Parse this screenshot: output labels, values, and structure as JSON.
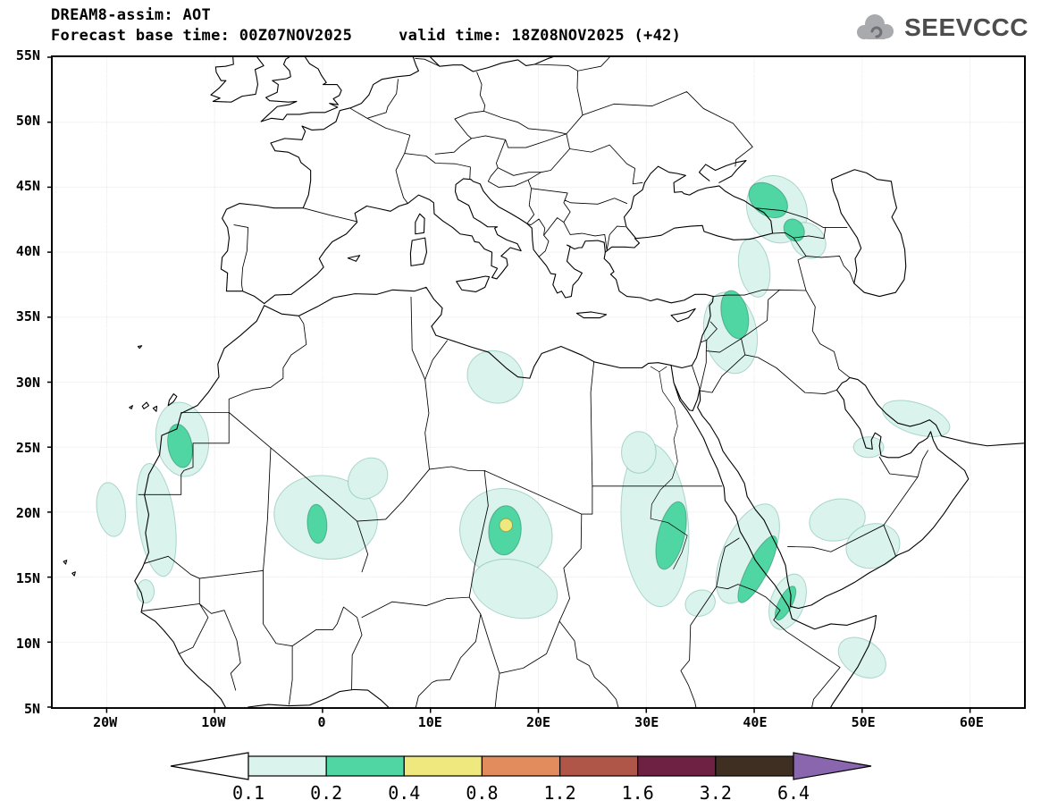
{
  "header": {
    "title": "DREAM8-assim: AOT",
    "base_time": "Forecast base time: 00Z07NOV2025",
    "valid_time": "valid time: 18Z08NOV2025 (+42)",
    "logo_text": "SEEVCCC"
  },
  "axes": {
    "lat": {
      "min": 5,
      "max": 55,
      "ticks": [
        {
          "v": 5,
          "label": "5N"
        },
        {
          "v": 10,
          "label": "10N"
        },
        {
          "v": 15,
          "label": "15N"
        },
        {
          "v": 20,
          "label": "20N"
        },
        {
          "v": 25,
          "label": "25N"
        },
        {
          "v": 30,
          "label": "30N"
        },
        {
          "v": 35,
          "label": "35N"
        },
        {
          "v": 40,
          "label": "40N"
        },
        {
          "v": 45,
          "label": "45N"
        },
        {
          "v": 50,
          "label": "50N"
        },
        {
          "v": 55,
          "label": "55N"
        }
      ]
    },
    "lon": {
      "min": -25,
      "max": 65,
      "ticks": [
        {
          "v": -20,
          "label": "20W"
        },
        {
          "v": -10,
          "label": "10W"
        },
        {
          "v": 0,
          "label": "0"
        },
        {
          "v": 10,
          "label": "10E"
        },
        {
          "v": 20,
          "label": "20E"
        },
        {
          "v": 30,
          "label": "30E"
        },
        {
          "v": 40,
          "label": "40E"
        },
        {
          "v": 50,
          "label": "50E"
        },
        {
          "v": 60,
          "label": "60E"
        }
      ]
    }
  },
  "chart_data": {
    "type": "heatmap",
    "title": "DREAM8-assim: AOT",
    "variable": "AOT",
    "x_range": [
      -25,
      65
    ],
    "y_range": [
      5,
      55
    ],
    "levels": [
      0.1,
      0.2,
      0.4,
      0.8,
      1.2,
      1.6,
      3.2,
      6.4
    ],
    "level_ranges": {
      "1": "0.1-0.2",
      "2": "0.2-0.4",
      "3": "0.4-0.8"
    },
    "colorbar": {
      "labels": [
        "0.1",
        "0.2",
        "0.4",
        "0.8",
        "1.2",
        "1.6",
        "3.2",
        "6.4"
      ],
      "colors": [
        "#daf3ec",
        "#4fd6a3",
        "#efe87e",
        "#e28b5c",
        "#b05648",
        "#6e2142",
        "#3f2e22"
      ],
      "under_color": "#ffffff",
      "over_color": "#8a66ae"
    },
    "regions": [
      {
        "level": 1,
        "lon": -13.0,
        "lat": 25.6,
        "rx": 2.4,
        "ry": 2.9,
        "rot": 18
      },
      {
        "level": 1,
        "lon": -15.4,
        "lat": 19.4,
        "rx": 1.7,
        "ry": 4.4,
        "rot": 10
      },
      {
        "level": 1,
        "lon": -19.6,
        "lat": 20.2,
        "rx": 1.3,
        "ry": 2.1,
        "rot": 12
      },
      {
        "level": 1,
        "lon": -16.4,
        "lat": 13.9,
        "rx": 0.8,
        "ry": 0.9,
        "rot": 0
      },
      {
        "level": 1,
        "lon": 0.3,
        "lat": 19.6,
        "rx": 4.8,
        "ry": 3.2,
        "rot": -6
      },
      {
        "level": 1,
        "lon": 4.2,
        "lat": 22.6,
        "rx": 1.9,
        "ry": 1.5,
        "rot": 25
      },
      {
        "level": 1,
        "lon": 16.0,
        "lat": 30.4,
        "rx": 2.6,
        "ry": 2.0,
        "rot": -10
      },
      {
        "level": 1,
        "lon": 17.0,
        "lat": 18.4,
        "rx": 4.3,
        "ry": 3.4,
        "rot": -8
      },
      {
        "level": 1,
        "lon": 17.8,
        "lat": 14.1,
        "rx": 4.0,
        "ry": 2.2,
        "rot": -10
      },
      {
        "level": 1,
        "lon": 30.8,
        "lat": 19.0,
        "rx": 3.1,
        "ry": 6.3,
        "rot": 6
      },
      {
        "level": 1,
        "lon": 29.3,
        "lat": 24.6,
        "rx": 1.6,
        "ry": 1.6,
        "rot": 0
      },
      {
        "level": 1,
        "lon": 39.4,
        "lat": 16.8,
        "rx": 2.2,
        "ry": 4.3,
        "rot": -32
      },
      {
        "level": 1,
        "lon": 43.1,
        "lat": 13.1,
        "rx": 1.5,
        "ry": 2.3,
        "rot": -30
      },
      {
        "level": 1,
        "lon": 35.0,
        "lat": 13.0,
        "rx": 1.4,
        "ry": 1.0,
        "rot": 10
      },
      {
        "level": 1,
        "lon": 47.7,
        "lat": 19.4,
        "rx": 2.6,
        "ry": 1.6,
        "rot": 8
      },
      {
        "level": 1,
        "lon": 51.0,
        "lat": 17.4,
        "rx": 2.5,
        "ry": 1.7,
        "rot": 8
      },
      {
        "level": 1,
        "lon": 55.0,
        "lat": 27.2,
        "rx": 3.2,
        "ry": 1.2,
        "rot": -14
      },
      {
        "level": 1,
        "lon": 50.6,
        "lat": 25.0,
        "rx": 1.4,
        "ry": 0.8,
        "rot": 0
      },
      {
        "level": 1,
        "lon": 37.8,
        "lat": 33.8,
        "rx": 2.4,
        "ry": 3.2,
        "rot": 18
      },
      {
        "level": 1,
        "lon": 40.0,
        "lat": 38.8,
        "rx": 1.4,
        "ry": 2.3,
        "rot": 14
      },
      {
        "level": 1,
        "lon": 42.1,
        "lat": 43.3,
        "rx": 2.9,
        "ry": 2.5,
        "rot": -28
      },
      {
        "level": 1,
        "lon": 45.0,
        "lat": 40.9,
        "rx": 1.7,
        "ry": 1.3,
        "rot": -25
      },
      {
        "level": 1,
        "lon": 50.0,
        "lat": 8.8,
        "rx": 2.3,
        "ry": 1.4,
        "rot": -22
      },
      {
        "level": 2,
        "lon": -13.2,
        "lat": 25.1,
        "rx": 1.1,
        "ry": 1.7,
        "rot": 15
      },
      {
        "level": 2,
        "lon": -0.5,
        "lat": 19.1,
        "rx": 0.9,
        "ry": 1.5,
        "rot": 5
      },
      {
        "level": 2,
        "lon": 16.9,
        "lat": 18.6,
        "rx": 1.5,
        "ry": 1.9,
        "rot": -8
      },
      {
        "level": 2,
        "lon": 32.3,
        "lat": 18.2,
        "rx": 1.2,
        "ry": 2.7,
        "rot": -18
      },
      {
        "level": 2,
        "lon": 40.3,
        "lat": 15.6,
        "rx": 0.9,
        "ry": 3.0,
        "rot": -33
      },
      {
        "level": 2,
        "lon": 42.9,
        "lat": 13.0,
        "rx": 0.6,
        "ry": 1.5,
        "rot": -33
      },
      {
        "level": 2,
        "lon": 38.2,
        "lat": 35.2,
        "rx": 1.2,
        "ry": 1.9,
        "rot": 18
      },
      {
        "level": 2,
        "lon": 41.3,
        "lat": 44.0,
        "rx": 1.9,
        "ry": 1.2,
        "rot": -25
      },
      {
        "level": 2,
        "lon": 43.7,
        "lat": 41.7,
        "rx": 1.0,
        "ry": 0.8,
        "rot": -30
      },
      {
        "level": 3,
        "lon": 17.0,
        "lat": 19.0,
        "rx": 0.6,
        "ry": 0.5,
        "rot": 0
      }
    ]
  }
}
